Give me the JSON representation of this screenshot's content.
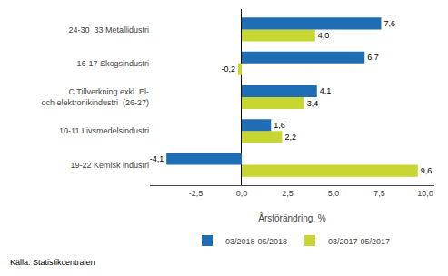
{
  "chart_data": {
    "type": "bar",
    "orientation": "horizontal",
    "categories": [
      "19-22 Kemisk industri",
      "10-11 Livsmedelsindustri",
      "C Tillverkning exkl. El-\noch elektronikindustri  (26-27)",
      "16-17 Skogsindustri",
      "24-30_33 Metallidustri"
    ],
    "series": [
      {
        "name": "03/2018-05/2018",
        "color": "#1F6DB5",
        "values": [
          -4.1,
          1.6,
          4.1,
          6.7,
          7.6
        ],
        "value_labels": [
          "-4,1",
          "1,6",
          "4,1",
          "6,7",
          "7,6"
        ]
      },
      {
        "name": "03/2017-05/2017",
        "color": "#C8D632",
        "values": [
          9.6,
          2.2,
          3.4,
          -0.2,
          4.0
        ],
        "value_labels": [
          "9,6",
          "2,2",
          "3,4",
          "-0,2",
          "4,0"
        ]
      }
    ],
    "xlabel": "Årsförändring, %",
    "xlim": [
      -5.0,
      10.5
    ],
    "xticks": [
      {
        "value": -2.5,
        "label": "-2,5"
      },
      {
        "value": 0.0,
        "label": "0,0"
      },
      {
        "value": 2.5,
        "label": "2,5"
      },
      {
        "value": 5.0,
        "label": "5,0"
      },
      {
        "value": 7.5,
        "label": "7,5"
      },
      {
        "value": 10.0,
        "label": "10,0"
      }
    ],
    "data_labels": true,
    "grid": false,
    "legend": "bottom",
    "annotations": [
      "Källa: Statistikcentralen"
    ]
  }
}
